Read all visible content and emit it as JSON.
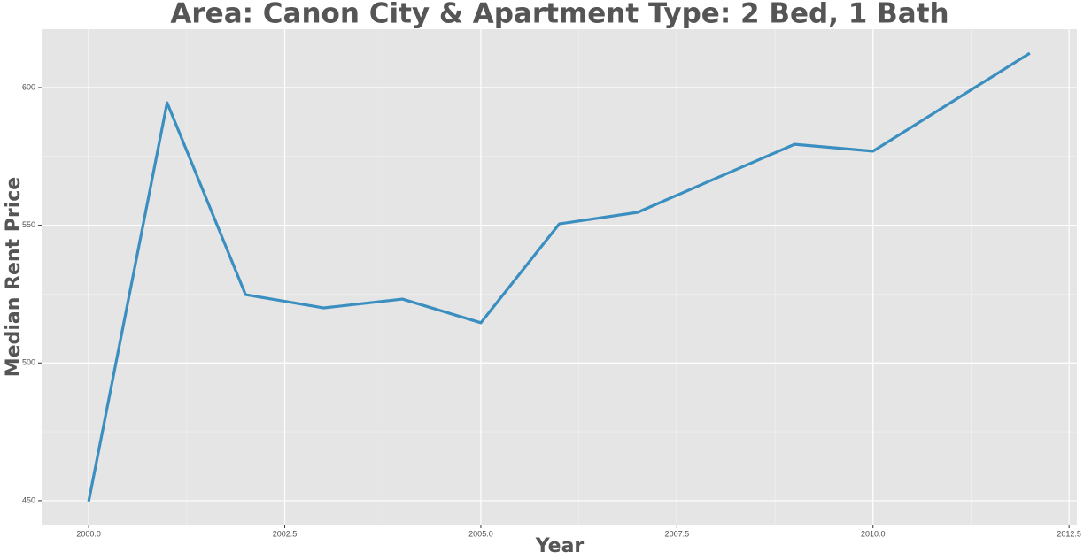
{
  "chart_data": {
    "type": "line",
    "title": "Area: Canon City & Apartment Type: 2 Bed, 1 Bath",
    "x_label": "Year",
    "y_label": "Median Rent Price",
    "x": [
      2000,
      2001,
      2002,
      2003,
      2004,
      2005,
      2006,
      2007,
      2008,
      2009,
      2010,
      2011,
      2012
    ],
    "series": [
      {
        "name": "Median Rent Price",
        "color": "#3a8fc0",
        "values": [
          449.7,
          594.5,
          524.8,
          520.0,
          523.2,
          514.6,
          550.5,
          554.7,
          567.1,
          579.4,
          576.9,
          594.7,
          612.5
        ]
      }
    ],
    "xlim": [
      1999.4,
      2012.6
    ],
    "xticks": [
      {
        "value": 2000,
        "label": "2000.0"
      },
      {
        "value": 2002.5,
        "label": "2002.5"
      },
      {
        "value": 2005,
        "label": "2005.0"
      },
      {
        "value": 2007.5,
        "label": "2007.5"
      },
      {
        "value": 2010,
        "label": "2010.0"
      },
      {
        "value": 2012.5,
        "label": "2012.5"
      }
    ],
    "ylim": [
      441.3,
      621.2
    ],
    "yticks": [
      450,
      500,
      550,
      600
    ],
    "grid": true
  }
}
